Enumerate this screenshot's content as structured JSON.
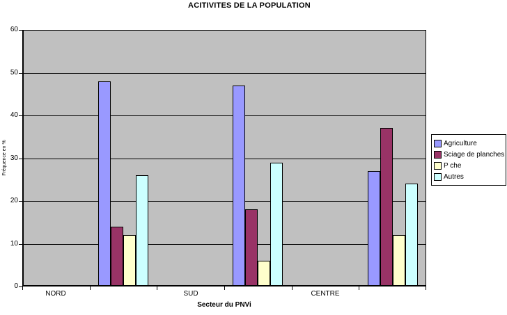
{
  "chart_data": {
    "type": "bar",
    "title": "ACITIVITES DE LA POPULATION",
    "xlabel": "Secteur du PNVi",
    "ylabel": "Fréquence en %",
    "categories": [
      "NORD",
      "SUD",
      "CENTRE"
    ],
    "series": [
      {
        "name": "Agriculture",
        "color": "#9999FF",
        "values": [
          48,
          47,
          27
        ]
      },
      {
        "name": "Sciage de planches",
        "color": "#993366",
        "values": [
          14,
          18,
          37
        ]
      },
      {
        "name": "P che",
        "color": "#FFFFCC",
        "values": [
          12,
          6,
          12
        ]
      },
      {
        "name": "Autres",
        "color": "#CCFFFF",
        "values": [
          26,
          29,
          24
        ]
      }
    ],
    "ylim": [
      0,
      60
    ],
    "yticks": [
      0,
      10,
      20,
      30,
      40,
      50,
      60
    ],
    "grid": true,
    "legend_position": "right",
    "plot_background": "#C0C0C0",
    "axis_color": "#000000"
  }
}
